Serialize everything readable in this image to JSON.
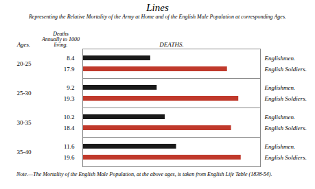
{
  "chart_data": {
    "type": "bar",
    "orientation": "horizontal",
    "title": "Lines",
    "subtitle": "Representing the Relative Mortality of the Army at Home and of the English Male Population at corresponding Ages.",
    "note": "Note.—The Mortality of the English Male Population, at the above ages, is taken from English Life Table (1838-54).",
    "ylabel": "Ages.",
    "annotations": [
      "Deaths\nAnnually to 1000\nliving.",
      "DEATHS."
    ],
    "categories": [
      "20-25",
      "25-30",
      "30-35",
      "35-40"
    ],
    "series": [
      {
        "name": "Englishmen.",
        "color": "#1a1a1a",
        "values": [
          8.4,
          9.2,
          10.2,
          11.6
        ]
      },
      {
        "name": "English Soldiers.",
        "color": "#c0392b",
        "values": [
          17.9,
          19.3,
          18.4,
          19.6
        ]
      }
    ],
    "xlim": [
      0,
      22
    ],
    "data_labels": true,
    "tick_labels": "y",
    "grid": false
  }
}
